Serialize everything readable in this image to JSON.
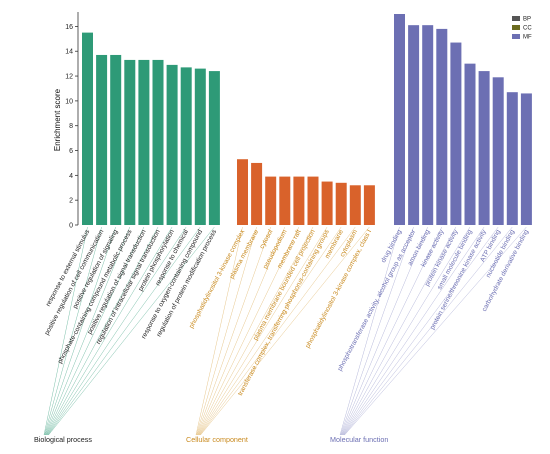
{
  "chart_data": {
    "type": "bar",
    "ylabel": "Enrichment score",
    "ylim": [
      0,
      17
    ],
    "yticks": [
      0,
      2,
      4,
      6,
      8,
      10,
      12,
      14,
      16
    ],
    "legend_placement": "top-right",
    "legend": [
      {
        "key": "BP",
        "label": "BP",
        "color": "#555555"
      },
      {
        "key": "CC",
        "label": "CC",
        "color": "#6b6b1f"
      },
      {
        "key": "MF",
        "label": "MF",
        "color": "#6c6fb3"
      }
    ],
    "groups": [
      {
        "key": "BP",
        "name": "Biological process",
        "color": "#2e9a77",
        "text_color": "#222222",
        "line_color": "#2e9a77",
        "categories": [
          "response to external stimulus",
          "positive regulation of cell communication",
          "positive regulation of signaling",
          "phosphate-containing compound metabolic process",
          "positive regulation of signal transduction",
          "regulation of intracellular signal transduction",
          "protein phosphorylation",
          "response to chemical",
          "response to oxygen-containing compound",
          "regulation of protein modification process"
        ],
        "values": [
          15.5,
          13.7,
          13.7,
          13.3,
          13.3,
          13.3,
          12.9,
          12.7,
          12.6,
          12.4
        ]
      },
      {
        "key": "CC",
        "name": "Cellular component",
        "color": "#d9622b",
        "text_color": "#c98a1e",
        "line_color": "#d9a64a",
        "categories": [
          "phosphatidylinositol 3-kinase complex",
          "plasma membrane",
          "cytosol",
          "pseudopodium",
          "membrane raft",
          "plasma membrane bounded cell projection",
          "transferase complex, transferring phosphorus-containing groups",
          "membrane",
          "cytoplasm",
          "phosphatidylinositol 3-kinase complex, class I"
        ],
        "values": [
          5.3,
          5.0,
          3.9,
          3.9,
          3.9,
          3.9,
          3.5,
          3.4,
          3.2,
          3.2
        ]
      },
      {
        "key": "MF",
        "name": "Molecular function",
        "color": "#6c6fb3",
        "text_color": "#6c6fb3",
        "line_color": "#8d8fc6",
        "categories": [
          "drug binding",
          "phosphotransferase activity, alcohol group as acceptor",
          "amon binding",
          "kinase activity",
          "protein kinase activity",
          "small molecule binding",
          "protein serine/threonine kinase activity",
          "ATP binding",
          "nucleotide binding",
          "carbohydrate derivative binding"
        ],
        "values": [
          17.0,
          16.1,
          16.1,
          15.8,
          14.7,
          13.0,
          12.4,
          11.9,
          10.7,
          10.6
        ]
      }
    ]
  }
}
